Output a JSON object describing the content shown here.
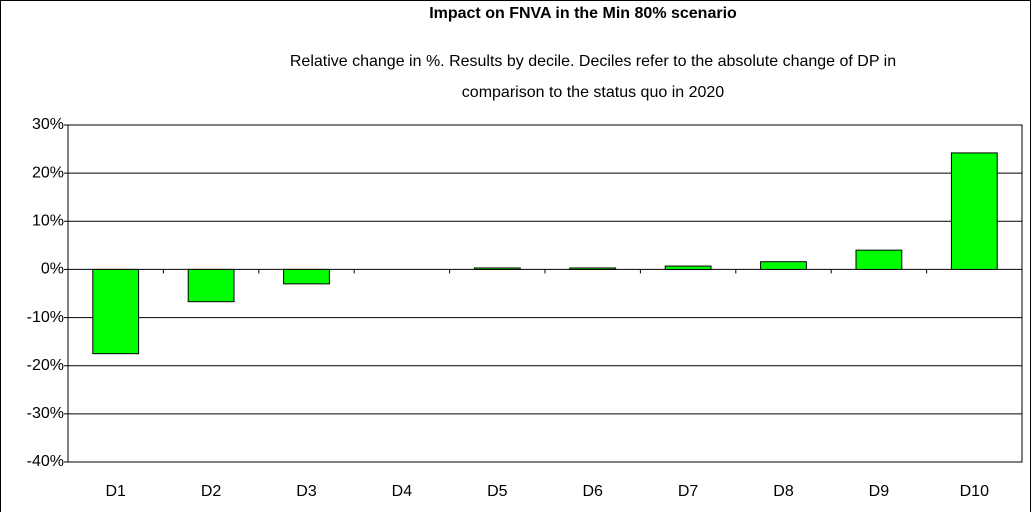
{
  "chart_data": {
    "type": "bar",
    "title": "Impact on FNVA in the Min 80% scenario",
    "subtitle": [
      "Relative change in %. Results by decile. Deciles refer to the absolute change of DP in",
      "comparison to the status quo in 2020"
    ],
    "categories": [
      "D1",
      "D2",
      "D3",
      "D4",
      "D5",
      "D6",
      "D7",
      "D8",
      "D9",
      "D10"
    ],
    "values": [
      -17.5,
      -6.7,
      -3,
      0,
      0.3,
      0.3,
      0.7,
      1.6,
      4.0,
      24.2
    ],
    "color": "#00ff00",
    "ylim": [
      -40,
      30
    ],
    "yticks": [
      {
        "value": -40,
        "label": "-40%"
      },
      {
        "value": -30,
        "label": "-30%"
      },
      {
        "value": -20,
        "label": "-20%"
      },
      {
        "value": -10,
        "label": "-10%"
      },
      {
        "value": 0,
        "label": "0%"
      },
      {
        "value": 10,
        "label": "10%"
      },
      {
        "value": 20,
        "label": "20%"
      },
      {
        "value": 30,
        "label": "30%"
      }
    ],
    "grid": true
  }
}
